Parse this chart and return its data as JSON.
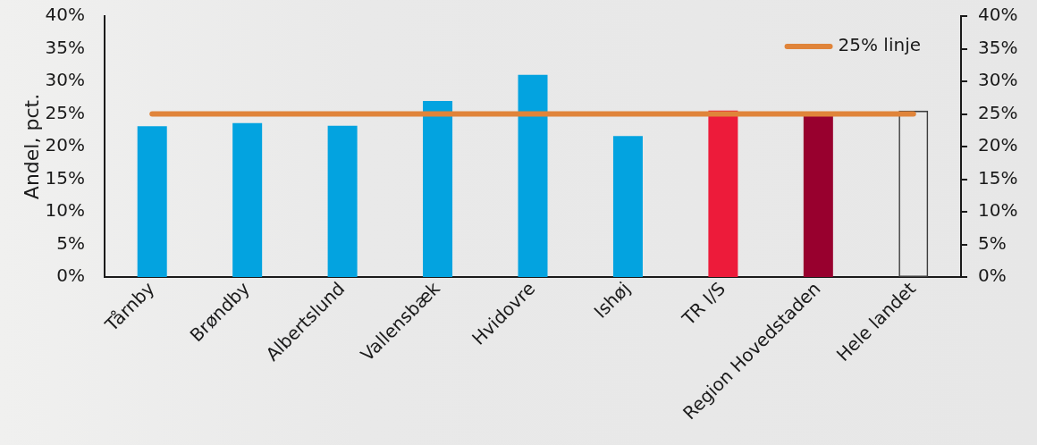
{
  "chart_data": {
    "type": "bar",
    "ylabel": "Andel, pct.",
    "categories": [
      "Tårnby",
      "Brøndby",
      "Albertslund",
      "Vallensbæk",
      "Hvidovre",
      "Ishøj",
      "TR I/S",
      "Region Hovedstaden",
      "Hele landet"
    ],
    "series": [
      {
        "values": [
          23.1,
          23.6,
          23.2,
          27.0,
          31.0,
          21.6,
          25.5,
          24.9,
          25.5
        ],
        "colors": [
          "#03a3e0",
          "#03a3e0",
          "#03a3e0",
          "#03a3e0",
          "#03a3e0",
          "#03a3e0",
          "#ed1b3a",
          "#98002e",
          null
        ]
      },
      {
        "type": "line",
        "name": "25% linje",
        "color": "#e0843a",
        "values": [
          25,
          25,
          25,
          25,
          25,
          25,
          25,
          25,
          25
        ]
      }
    ],
    "ylim": [
      0,
      40
    ],
    "yticks": [
      {
        "value": 0,
        "label": "0%"
      },
      {
        "value": 5,
        "label": "5%"
      },
      {
        "value": 10,
        "label": "10%"
      },
      {
        "value": 15,
        "label": "15%"
      },
      {
        "value": 20,
        "label": "20%"
      },
      {
        "value": 25,
        "label": "25%"
      },
      {
        "value": 30,
        "label": "30%"
      },
      {
        "value": 35,
        "label": "35%"
      },
      {
        "value": 40,
        "label": "40%"
      }
    ],
    "y2lim": [
      0,
      40
    ],
    "y2ticks": [
      {
        "value": 0,
        "label": "0%"
      },
      {
        "value": 5,
        "label": "5%"
      },
      {
        "value": 10,
        "label": "10%"
      },
      {
        "value": 15,
        "label": "15%"
      },
      {
        "value": 20,
        "label": "20%"
      },
      {
        "value": 25,
        "label": "25%"
      },
      {
        "value": 30,
        "label": "30%"
      },
      {
        "value": 35,
        "label": "35%"
      },
      {
        "value": 40,
        "label": "40%"
      }
    ],
    "grid": false,
    "legend": "top right"
  }
}
